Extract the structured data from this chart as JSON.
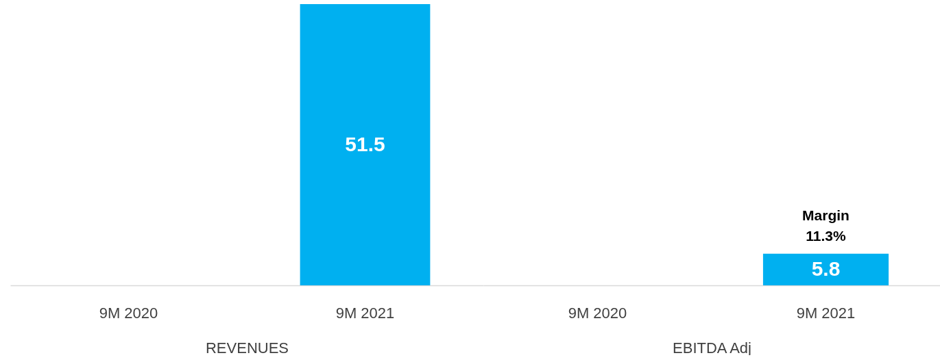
{
  "chart_data": [
    {
      "type": "bar",
      "categories": [
        "9M 2020",
        "9M 2021"
      ],
      "values": [
        null,
        51.5
      ],
      "color": "#00b0f0",
      "data_labels": true,
      "xlabel": "REVENUES"
    },
    {
      "type": "bar",
      "categories": [
        "9M 2020",
        "9M 2021"
      ],
      "values": [
        null,
        5.8
      ],
      "color": "#00b0f0",
      "data_labels": true,
      "xlabel": "EBITDA Adj",
      "annotations": [
        {
          "text": "Margin\n11.3%",
          "x": "9M 2021",
          "y": 5.8
        }
      ]
    }
  ]
}
